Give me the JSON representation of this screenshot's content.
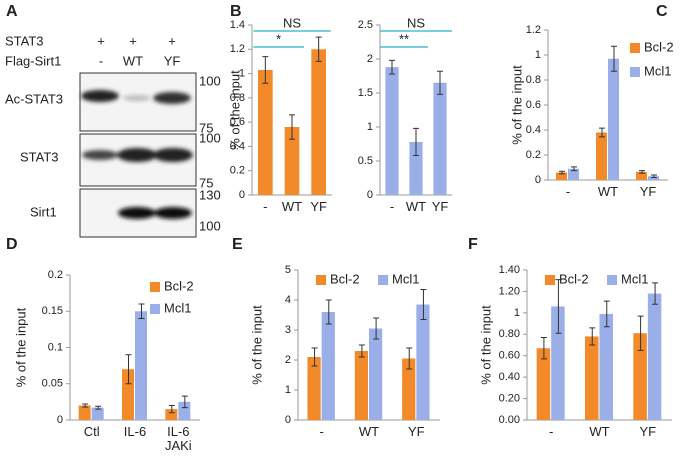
{
  "panel_labels": [
    "A",
    "B",
    "C",
    "D",
    "E",
    "F"
  ],
  "blot": {
    "header_rows": [
      {
        "label": "STAT3",
        "lanes": [
          "+",
          "+",
          "+"
        ]
      },
      {
        "label": "Flag-Sirt1",
        "lanes": [
          "-",
          "WT",
          "YF"
        ]
      }
    ],
    "blots": [
      {
        "label": "Ac-STAT3",
        "markers": [
          "100",
          "75"
        ]
      },
      {
        "label": "STAT3",
        "markers": [
          "100",
          "75"
        ]
      },
      {
        "label": "Sirt1",
        "markers": [
          "130",
          "100"
        ]
      }
    ]
  },
  "chart_data": [
    {
      "type": "bar",
      "y_label": "% of the input",
      "categories": [
        "-",
        "WT",
        "YF"
      ],
      "series": [
        {
          "color": "#f28a2a",
          "values": [
            1.03,
            0.56,
            1.2
          ],
          "errors": [
            0.11,
            0.1,
            0.1
          ]
        }
      ],
      "ylim": [
        0,
        1.4
      ],
      "yticks": [
        0,
        0.2,
        0.4,
        0.6,
        0.8,
        1,
        1.2,
        1.4
      ],
      "annotations": [
        {
          "text": "*",
          "between": [
            "-",
            "WT"
          ]
        },
        {
          "text": "NS",
          "between": [
            "-",
            "YF"
          ]
        }
      ]
    },
    {
      "type": "bar",
      "categories": [
        "-",
        "WT",
        "YF"
      ],
      "series": [
        {
          "color": "#9aaee8",
          "values": [
            1.88,
            0.78,
            1.65
          ],
          "errors": [
            0.1,
            0.2,
            0.17
          ]
        }
      ],
      "ylim": [
        0,
        2.5
      ],
      "yticks": [
        0,
        0.5,
        1,
        1.5,
        2,
        2.5
      ],
      "annotations": [
        {
          "text": "**",
          "between": [
            "-",
            "WT"
          ]
        },
        {
          "text": "NS",
          "between": [
            "-",
            "YF"
          ]
        }
      ]
    },
    {
      "type": "bar",
      "y_label": "% of the input",
      "categories": [
        "-",
        "WT",
        "YF"
      ],
      "legend": "right",
      "series": [
        {
          "name": "Bcl-2",
          "color": "#f28a2a",
          "values": [
            0.06,
            0.38,
            0.065
          ],
          "errors": [
            0.01,
            0.035,
            0.01
          ]
        },
        {
          "name": "Mcl1",
          "color": "#9aaee8",
          "values": [
            0.09,
            0.97,
            0.03
          ],
          "errors": [
            0.015,
            0.1,
            0.01
          ]
        }
      ],
      "ylim": [
        0,
        1.2
      ],
      "yticks": [
        0,
        0.2,
        0.4,
        0.6,
        0.8,
        1,
        1.2
      ]
    },
    {
      "type": "bar",
      "y_label": "% of the input",
      "categories": [
        "Ctl",
        "IL-6",
        "IL-6 JAKi"
      ],
      "legend": "upper right",
      "series": [
        {
          "name": "Bcl-2",
          "color": "#f28a2a",
          "values": [
            0.02,
            0.07,
            0.015
          ],
          "errors": [
            0.002,
            0.02,
            0.005
          ]
        },
        {
          "name": "Mcl1",
          "color": "#9aaee8",
          "values": [
            0.017,
            0.15,
            0.025
          ],
          "errors": [
            0.002,
            0.01,
            0.008
          ]
        }
      ],
      "ylim": [
        0,
        0.2
      ],
      "yticks": [
        0,
        0.05,
        0.1,
        0.15,
        0.2
      ]
    },
    {
      "type": "bar",
      "y_label": "% of the input",
      "categories": [
        "-",
        "WT",
        "YF"
      ],
      "legend": "top",
      "series": [
        {
          "name": "Bcl-2",
          "color": "#f28a2a",
          "values": [
            2.1,
            2.3,
            2.05
          ],
          "errors": [
            0.3,
            0.2,
            0.35
          ]
        },
        {
          "name": "Mcl1",
          "color": "#9aaee8",
          "values": [
            3.6,
            3.05,
            3.85
          ],
          "errors": [
            0.4,
            0.35,
            0.5
          ]
        }
      ],
      "ylim": [
        0,
        5
      ],
      "yticks": [
        0,
        1,
        2,
        3,
        4,
        5
      ]
    },
    {
      "type": "bar",
      "y_label": "% of the input",
      "categories": [
        "-",
        "WT",
        "YF"
      ],
      "legend": "top",
      "series": [
        {
          "name": "Bcl-2",
          "color": "#f28a2a",
          "values": [
            0.67,
            0.78,
            0.81
          ],
          "errors": [
            0.1,
            0.08,
            0.16
          ]
        },
        {
          "name": "Mcl1",
          "color": "#9aaee8",
          "values": [
            1.06,
            0.99,
            1.18
          ],
          "errors": [
            0.25,
            0.12,
            0.1
          ]
        }
      ],
      "ylim": [
        0,
        1.4
      ],
      "yticks": [
        {
          "value": 0,
          "label": "0.00"
        },
        {
          "value": 0.2,
          "label": "0.20"
        },
        {
          "value": 0.4,
          "label": "0.40"
        },
        {
          "value": 0.6,
          "label": "0.60"
        },
        {
          "value": 0.8,
          "label": "0.80"
        },
        1,
        {
          "value": 1.2,
          "label": "1.20"
        },
        {
          "value": 1.4,
          "label": "1.40"
        }
      ]
    }
  ]
}
